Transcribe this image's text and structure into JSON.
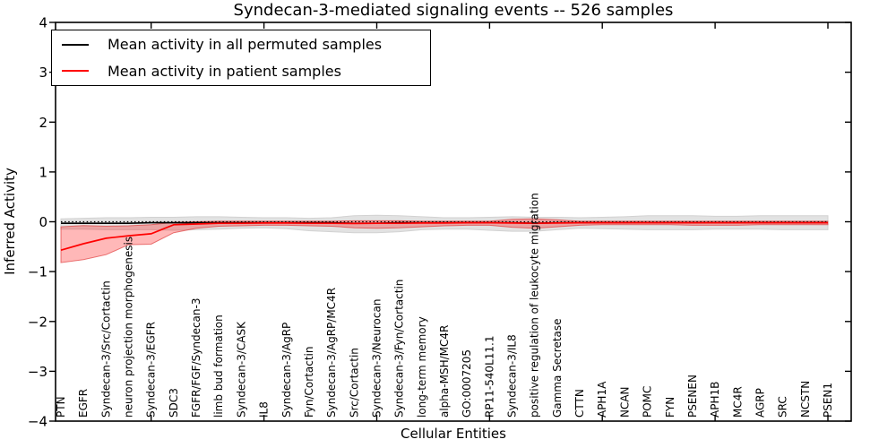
{
  "chart_data": {
    "type": "line",
    "title": "Syndecan-3-mediated signaling events -- 526 samples",
    "xlabel": "Cellular Entities",
    "ylabel": "Inferred Activity",
    "ylim": [
      -4,
      4
    ],
    "grid": false,
    "legend_position": "upper left",
    "yticks": [
      4,
      3,
      2,
      1,
      0,
      -1,
      -2,
      -3,
      -4
    ],
    "ytick_labels": [
      "4",
      "3",
      "2",
      "1",
      "0",
      "−1",
      "−2",
      "−3",
      "−4"
    ],
    "categories": [
      "PTN",
      "EGFR",
      "Syndecan-3/Src/Cortactin",
      "neuron projection morphogenesis",
      "Syndecan-3/EGFR",
      "SDC3",
      "FGFR/FGF/Syndecan-3",
      "limb bud formation",
      "Syndecan-3/CASK",
      "IL8",
      "Syndecan-3/AgRP",
      "Fyn/Cortactin",
      "Syndecan-3/AgRP/MC4R",
      "Src/Cortactin",
      "Syndecan-3/Neurocan",
      "Syndecan-3/Fyn/Cortactin",
      "long-term memory",
      "alpha-MSH/MC4R",
      "GO:0007205",
      "RP11-540L11.1",
      "Syndecan-3/IL8",
      "positive regulation of leukocyte migration",
      "Gamma Secretase",
      "CTTN",
      "APH1A",
      "NCAN",
      "POMC",
      "FYN",
      "PSENEN",
      "APH1B",
      "MC4R",
      "AGRP",
      "SRC",
      "NCSTN",
      "PSEN1"
    ],
    "reference_line": {
      "value": 0,
      "style": "dotted",
      "color": "#000000"
    },
    "series": [
      {
        "name": "Mean activity in all permuted samples",
        "color": "#000000",
        "band_color": "#e2e2e2",
        "band_edge_color": "#d2d2d2",
        "values": [
          -0.03,
          -0.03,
          -0.03,
          -0.03,
          -0.02,
          -0.02,
          -0.02,
          -0.02,
          -0.02,
          -0.02,
          -0.02,
          -0.02,
          -0.02,
          -0.03,
          -0.03,
          -0.02,
          -0.02,
          -0.02,
          -0.02,
          -0.02,
          -0.02,
          -0.03,
          -0.02,
          -0.02,
          -0.02,
          -0.02,
          -0.02,
          -0.02,
          -0.02,
          -0.02,
          -0.02,
          -0.02,
          -0.02,
          -0.02,
          -0.02
        ],
        "band_upper": [
          0.06,
          0.07,
          0.08,
          0.08,
          0.09,
          0.09,
          0.1,
          0.1,
          0.09,
          0.08,
          0.08,
          0.07,
          0.08,
          0.12,
          0.13,
          0.12,
          0.1,
          0.08,
          0.08,
          0.09,
          0.1,
          0.09,
          0.09,
          0.08,
          0.09,
          0.1,
          0.12,
          0.12,
          0.12,
          0.11,
          0.11,
          0.12,
          0.12,
          0.12,
          0.12
        ],
        "band_lower": [
          -0.15,
          -0.15,
          -0.16,
          -0.16,
          -0.16,
          -0.17,
          -0.16,
          -0.15,
          -0.13,
          -0.12,
          -0.14,
          -0.18,
          -0.2,
          -0.22,
          -0.22,
          -0.2,
          -0.16,
          -0.15,
          -0.15,
          -0.17,
          -0.19,
          -0.19,
          -0.16,
          -0.13,
          -0.14,
          -0.15,
          -0.16,
          -0.16,
          -0.16,
          -0.15,
          -0.15,
          -0.15,
          -0.16,
          -0.16,
          -0.16
        ]
      },
      {
        "name": "Mean activity in patient samples",
        "color": "#ff0000",
        "band_color": "#ff0000",
        "band_edge_color": "#dd3333",
        "values": [
          -0.57,
          -0.44,
          -0.33,
          -0.28,
          -0.24,
          -0.06,
          -0.045,
          -0.03,
          -0.03,
          -0.025,
          -0.025,
          -0.03,
          -0.03,
          -0.035,
          -0.03,
          -0.03,
          -0.025,
          -0.025,
          -0.02,
          -0.02,
          -0.025,
          -0.03,
          -0.025,
          -0.02,
          -0.02,
          -0.02,
          -0.02,
          -0.02,
          -0.02,
          -0.02,
          -0.02,
          -0.02,
          -0.02,
          -0.02,
          -0.02
        ],
        "band_upper": [
          -0.1,
          -0.075,
          -0.09,
          -0.08,
          -0.06,
          -0.015,
          0.0,
          0.01,
          0.01,
          0.01,
          0.01,
          0.01,
          0.01,
          0.02,
          0.02,
          0.02,
          0.01,
          0.01,
          0.01,
          0.01,
          0.05,
          0.06,
          0.04,
          0.01,
          0.01,
          0.01,
          0.01,
          0.01,
          0.01,
          0.01,
          0.01,
          0.01,
          0.01,
          0.01,
          0.01
        ],
        "band_lower": [
          -0.82,
          -0.76,
          -0.66,
          -0.46,
          -0.45,
          -0.22,
          -0.13,
          -0.09,
          -0.08,
          -0.07,
          -0.07,
          -0.08,
          -0.09,
          -0.12,
          -0.13,
          -0.12,
          -0.1,
          -0.08,
          -0.07,
          -0.07,
          -0.11,
          -0.13,
          -0.1,
          -0.07,
          -0.06,
          -0.06,
          -0.06,
          -0.06,
          -0.07,
          -0.07,
          -0.07,
          -0.06,
          -0.06,
          -0.06,
          -0.06
        ]
      }
    ]
  }
}
